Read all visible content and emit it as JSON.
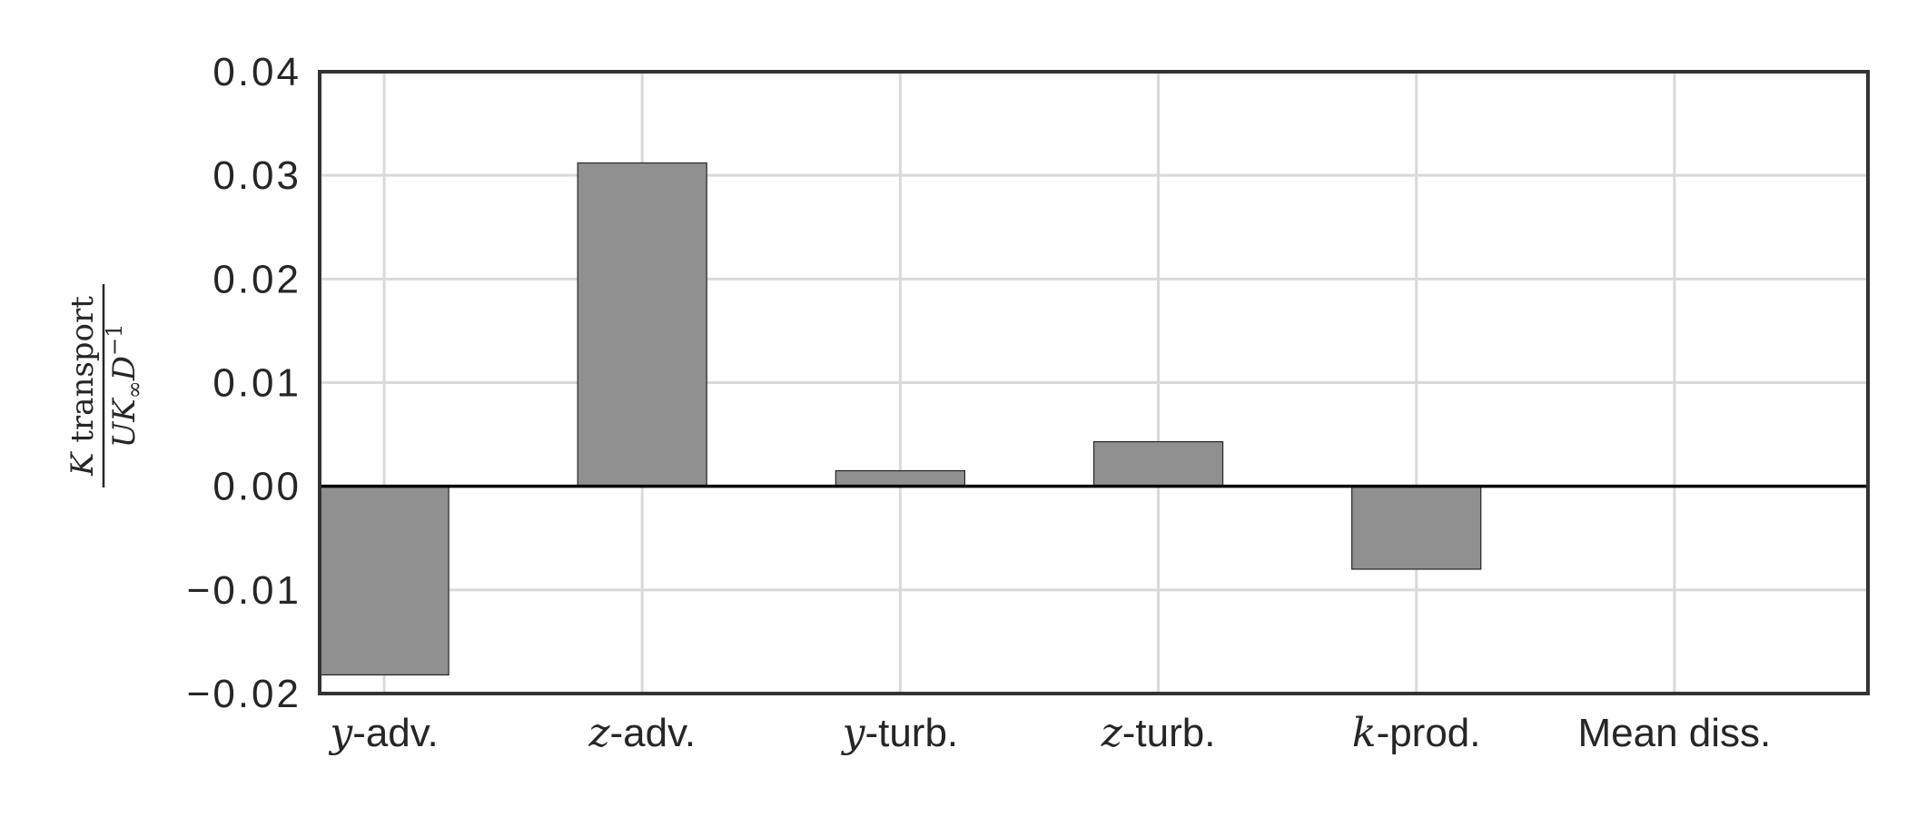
{
  "chart_data": {
    "type": "bar",
    "categories": [
      {
        "math": "y",
        "text": "-adv."
      },
      {
        "math": "z",
        "text": "-adv."
      },
      {
        "math": "y",
        "text": "-turb."
      },
      {
        "math": "z",
        "text": "-turb."
      },
      {
        "math": "k",
        "text": "-prod."
      },
      {
        "math": "",
        "text": "Mean diss."
      }
    ],
    "values": [
      -0.0182,
      0.0312,
      0.0015,
      0.0043,
      -0.008,
      0.0
    ],
    "ylim": [
      -0.02,
      0.04
    ],
    "yticks": [
      -0.02,
      -0.01,
      0.0,
      0.01,
      0.02,
      0.03,
      0.04
    ],
    "ytick_labels": [
      "−0.02",
      "−0.01",
      "0.00",
      "0.01",
      "0.02",
      "0.03",
      "0.04"
    ],
    "ylabel": {
      "numerator_math": "K",
      "numerator_text": "transport",
      "denominator": "UK",
      "subscript": "∞",
      "after": "D",
      "superscript": "−1"
    },
    "grid": true,
    "zero_line": true,
    "colors": {
      "bar": "#909090",
      "bar_edge": "#262626",
      "grid": "#d9d9d9",
      "axes": "#333333",
      "zero_line": "#000000",
      "text": "#262626"
    }
  }
}
